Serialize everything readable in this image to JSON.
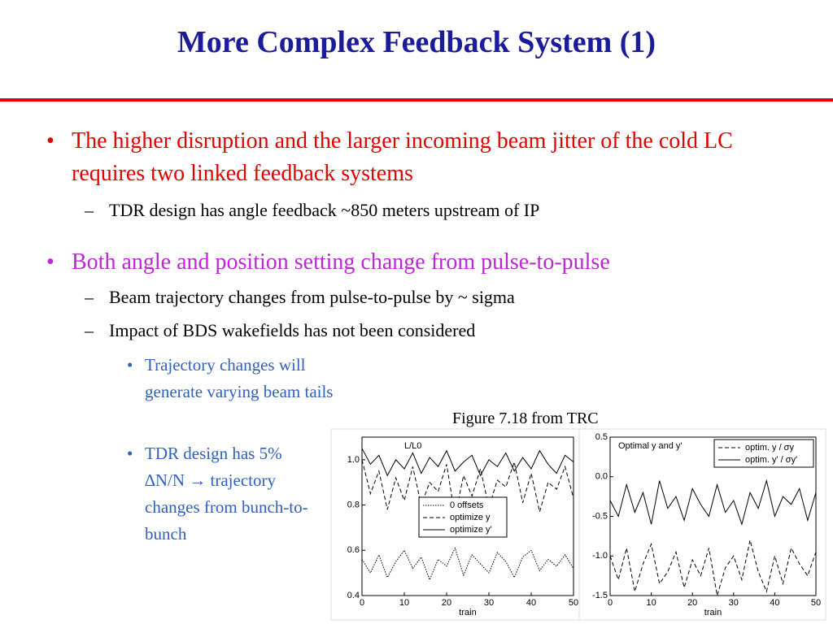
{
  "title": "More Complex Feedback System (1)",
  "bullets": [
    {
      "text": "The higher disruption and the larger incoming beam jitter of the cold LC requires two linked feedback systems",
      "sub": [
        {
          "text": "TDR design has angle feedback ~850 meters upstream of IP"
        }
      ]
    },
    {
      "text": "Both angle and position setting change from pulse-to-pulse",
      "sub": [
        {
          "text": "Beam trajectory changes from pulse-to-pulse by ~ sigma"
        },
        {
          "text": "Impact of BDS wakefields has not been considered",
          "sub": [
            {
              "text": "Trajectory changes will generate varying beam tails"
            },
            {
              "text": "TDR design has 5% ∆N/N → trajectory changes from bunch-to-bunch"
            }
          ]
        }
      ]
    }
  ],
  "figure_caption": "Figure 7.18 from TRC",
  "chart_data": [
    {
      "type": "line",
      "title": "L/L0",
      "x_label": "train",
      "legend": "lower center",
      "x": [
        0,
        2,
        4,
        6,
        8,
        10,
        12,
        14,
        16,
        18,
        20,
        22,
        24,
        26,
        28,
        30,
        32,
        34,
        36,
        38,
        40,
        42,
        44,
        46,
        48,
        50
      ],
      "xlim": [
        0,
        50
      ],
      "xticks": [
        0,
        10,
        20,
        30,
        40,
        50
      ],
      "ylim": [
        0.4,
        1.1
      ],
      "yticks": [
        0.4,
        0.6,
        0.8,
        {
          "value": 1,
          "label": "1.0"
        }
      ],
      "series": [
        {
          "name": "0 offsets",
          "color": "#000000",
          "style": "dotted",
          "values": [
            0.56,
            0.5,
            0.58,
            0.48,
            0.55,
            0.6,
            0.52,
            0.57,
            0.47,
            0.56,
            0.53,
            0.61,
            0.49,
            0.58,
            0.54,
            0.5,
            0.59,
            0.55,
            0.48,
            0.57,
            0.6,
            0.51,
            0.56,
            0.53,
            0.58,
            0.52
          ]
        },
        {
          "name": "optimize y",
          "color": "#000000",
          "style": "dashed",
          "values": [
            1.0,
            0.85,
            0.95,
            0.78,
            0.92,
            0.82,
            0.97,
            0.8,
            0.9,
            0.86,
            0.98,
            0.75,
            0.93,
            0.84,
            0.96,
            0.79,
            0.91,
            0.88,
            0.99,
            0.81,
            0.94,
            0.77,
            0.9,
            0.87,
            0.97,
            0.83
          ]
        },
        {
          "name": "optimize y'",
          "color": "#000000",
          "style": "solid",
          "values": [
            1.05,
            0.98,
            1.02,
            0.93,
            1.0,
            0.96,
            1.03,
            0.94,
            1.01,
            0.97,
            1.04,
            0.95,
            0.99,
            1.02,
            0.93,
            1.0,
            0.97,
            1.03,
            0.95,
            1.01,
            0.96,
            1.04,
            0.98,
            0.94,
            1.02,
            0.99
          ]
        }
      ]
    },
    {
      "type": "line",
      "title": "Optimal y and y'",
      "x_label": "train",
      "legend": "upper right",
      "x": [
        0,
        2,
        4,
        6,
        8,
        10,
        12,
        14,
        16,
        18,
        20,
        22,
        24,
        26,
        28,
        30,
        32,
        34,
        36,
        38,
        40,
        42,
        44,
        46,
        48,
        50
      ],
      "xlim": [
        0,
        50
      ],
      "xticks": [
        0,
        10,
        20,
        30,
        40,
        50
      ],
      "ylim": [
        -1.5,
        0.5
      ],
      "yticks": [
        -1.5,
        {
          "value": -1,
          "label": "-1.0"
        },
        -0.5,
        {
          "value": 0,
          "label": "0.0"
        },
        0.5
      ],
      "series": [
        {
          "name": "optim. y / σy",
          "color": "#000000",
          "style": "dashed",
          "values": [
            -1.0,
            -1.3,
            -0.9,
            -1.45,
            -1.1,
            -0.85,
            -1.35,
            -1.2,
            -0.95,
            -1.4,
            -1.05,
            -1.25,
            -0.9,
            -1.5,
            -1.15,
            -1.0,
            -1.3,
            -0.8,
            -1.2,
            -1.45,
            -1.0,
            -1.35,
            -0.9,
            -1.1,
            -1.25,
            -0.95
          ]
        },
        {
          "name": "optim. y' / σy'",
          "color": "#000000",
          "style": "solid",
          "values": [
            -0.3,
            -0.5,
            -0.1,
            -0.45,
            -0.2,
            -0.6,
            -0.05,
            -0.4,
            -0.25,
            -0.55,
            -0.15,
            -0.35,
            -0.5,
            -0.1,
            -0.45,
            -0.3,
            -0.6,
            -0.2,
            -0.4,
            -0.05,
            -0.5,
            -0.25,
            -0.35,
            -0.15,
            -0.55,
            -0.2
          ]
        }
      ]
    }
  ]
}
